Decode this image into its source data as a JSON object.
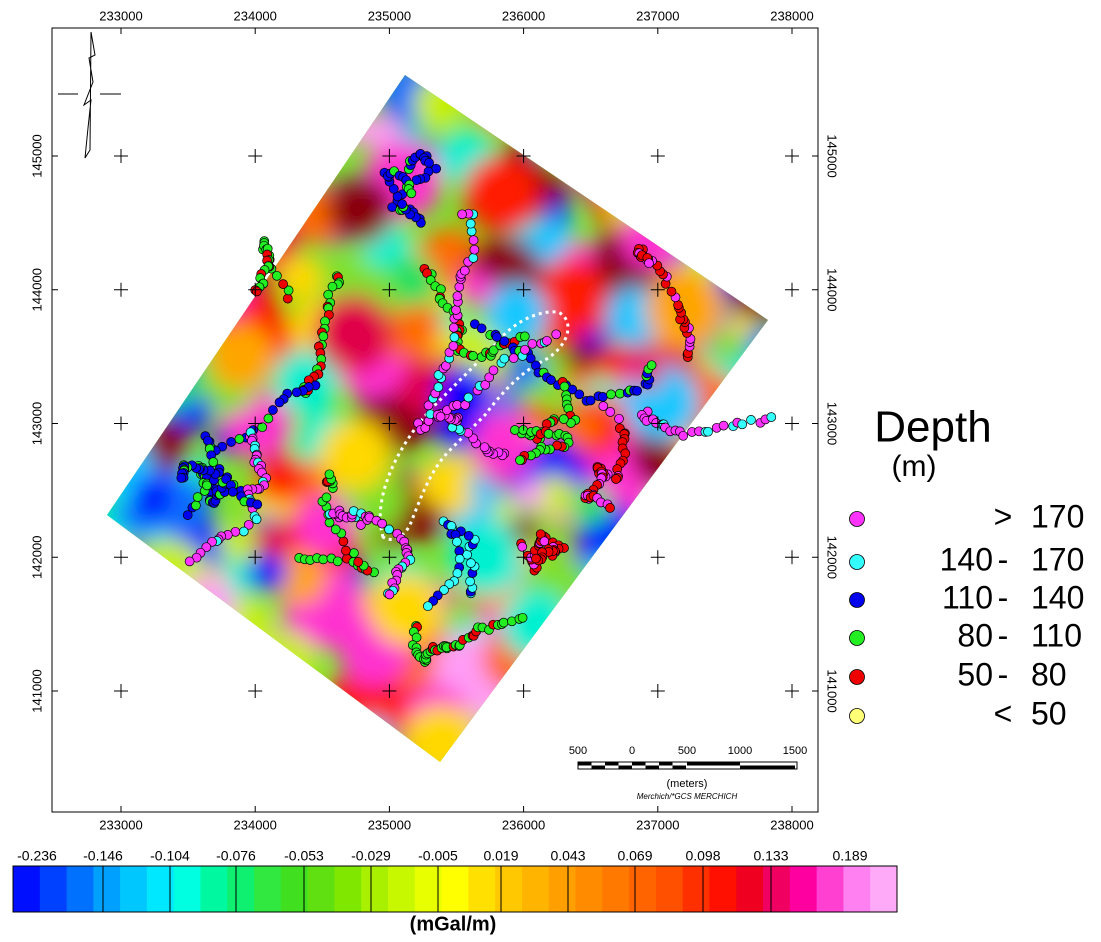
{
  "map": {
    "x_ticks": [
      233000,
      234000,
      235000,
      236000,
      237000,
      238000
    ],
    "y_ticks": [
      141000,
      142000,
      143000,
      144000,
      145000
    ]
  },
  "legend": {
    "title": "Depth",
    "unit": "(m)",
    "items": [
      {
        "sep": ">",
        "high": "170",
        "color": "#ff33ff"
      },
      {
        "low": "140",
        "sep": "-",
        "high": "170",
        "color": "#33ffff"
      },
      {
        "low": "110",
        "sep": "-",
        "high": "140",
        "color": "#0000ee"
      },
      {
        "low": "80",
        "sep": "-",
        "high": "110",
        "color": "#22ee22"
      },
      {
        "low": "50",
        "sep": "-",
        "high": "80",
        "color": "#ee0000"
      },
      {
        "sep": "<",
        "high": "50",
        "color": "#ffff77"
      }
    ]
  },
  "colorbar": {
    "labels": [
      -0.236,
      -0.146,
      -0.104,
      -0.076,
      -0.053,
      -0.029,
      -0.005,
      0.019,
      0.043,
      0.069,
      0.098,
      0.133,
      0.189
    ],
    "unit": "(mGal/m)"
  },
  "scale_bar": {
    "labels": [
      "500",
      "0",
      "500",
      "1000",
      "1500"
    ],
    "unit": "(meters)",
    "credit": "Merchich/*GCS MERCHICH"
  }
}
